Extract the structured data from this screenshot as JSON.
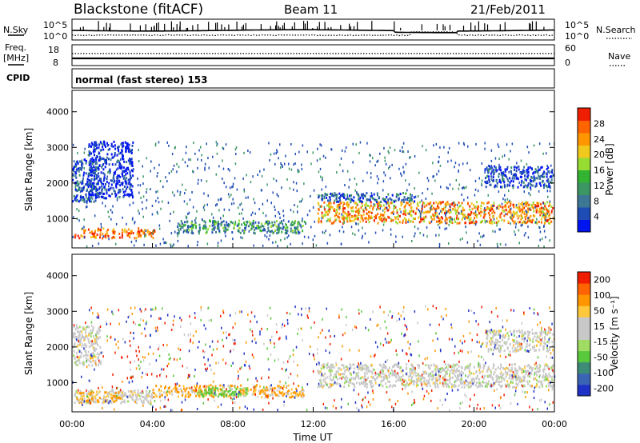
{
  "header": {
    "station": "Blackstone (fitACF)",
    "beam": "Beam 11",
    "date": "21/Feb/2011"
  },
  "top_panels": {
    "nsky_label": "N.Sky",
    "nsky_ticks": [
      "10^5",
      "10^0"
    ],
    "nsearch_label": "N.Search",
    "nsearch_ticks": [
      "10^5",
      "10^0"
    ],
    "freq_label": "Freq.",
    "freq_unit": "[MHz]",
    "freq_ticks": [
      "8",
      "18"
    ],
    "nave_label": "Nave",
    "nave_ticks": [
      "60",
      "0"
    ],
    "cpid_label": "CPID",
    "cpid_text": "normal (fast stereo) 153"
  },
  "chart_data": [
    {
      "type": "heatmap",
      "name": "power",
      "ylabel": "Slant Range [km]",
      "ylim": [
        180,
        4600
      ],
      "yticks": [
        "1000",
        "2000",
        "3000",
        "4000"
      ],
      "xlim": [
        0,
        24
      ],
      "colorbar": {
        "label": "Power [dB]",
        "ticks": [
          "4",
          "8",
          "12",
          "16",
          "20",
          "24",
          "28"
        ],
        "colors": [
          "#0014f0",
          "#1e4cb4",
          "#3c7896",
          "#3c9664",
          "#32b432",
          "#96dc32",
          "#f0c81e",
          "#ff9600",
          "#ff6400",
          "#f01e00"
        ]
      },
      "bands": [
        {
          "t0": 0.1,
          "t1": 4.1,
          "r0": 480,
          "r1": 760,
          "level": 0.82
        },
        {
          "t0": 5.2,
          "t1": 11.6,
          "r0": 620,
          "r1": 980,
          "level": 0.35
        },
        {
          "t0": 0.0,
          "t1": 1.2,
          "r0": 1500,
          "r1": 2700,
          "level": 0.15
        },
        {
          "t0": 12.2,
          "t1": 24.0,
          "r0": 900,
          "r1": 1500,
          "level": 0.75
        },
        {
          "t0": 12.2,
          "t1": 17.0,
          "r0": 1500,
          "r1": 1750,
          "level": 0.2
        },
        {
          "t0": 20.5,
          "t1": 24.0,
          "r0": 1900,
          "r1": 2500,
          "level": 0.1
        },
        {
          "t0": 0.8,
          "t1": 3.0,
          "r0": 1600,
          "r1": 3200,
          "level": 0.05
        }
      ]
    },
    {
      "type": "heatmap",
      "name": "velocity",
      "ylabel": "Slant Range [km]",
      "ylim": [
        180,
        4600
      ],
      "yticks": [
        "1000",
        "2000",
        "3000",
        "4000"
      ],
      "xlim": [
        0,
        24
      ],
      "xlabel": "Time UT",
      "xticks": [
        "00:00",
        "04:00",
        "08:00",
        "12:00",
        "16:00",
        "20:00",
        "00:00"
      ],
      "colorbar": {
        "label": "Velocity [m s⁻¹]",
        "ticks": [
          "200",
          "100",
          "50",
          "15",
          "-15",
          "-50",
          "-100",
          "-200"
        ],
        "colors": [
          "#1e32c8",
          "#3c64b4",
          "#3c8c78",
          "#5ac83c",
          "#a0dc64",
          "#c8c8c8",
          "#c8c8c8",
          "#ffc83c",
          "#ff9600",
          "#ff6400",
          "#f01e00"
        ]
      },
      "bands": [
        {
          "t0": 0.1,
          "t1": 4.0,
          "r0": 460,
          "r1": 820,
          "level": "gray"
        },
        {
          "t0": 0.2,
          "t1": 2.5,
          "r0": 460,
          "r1": 780,
          "level": "orange"
        },
        {
          "t0": 4.0,
          "t1": 11.5,
          "r0": 620,
          "r1": 960,
          "level": "orange"
        },
        {
          "t0": 6.2,
          "t1": 8.8,
          "r0": 640,
          "r1": 900,
          "level": "green"
        },
        {
          "t0": 12.2,
          "t1": 24.0,
          "r0": 900,
          "r1": 1550,
          "level": "gray"
        },
        {
          "t0": 0.0,
          "t1": 1.4,
          "r0": 1500,
          "r1": 2600,
          "level": "gray"
        },
        {
          "t0": 20.5,
          "t1": 24.0,
          "r0": 1900,
          "r1": 2500,
          "level": "gray"
        }
      ]
    }
  ]
}
